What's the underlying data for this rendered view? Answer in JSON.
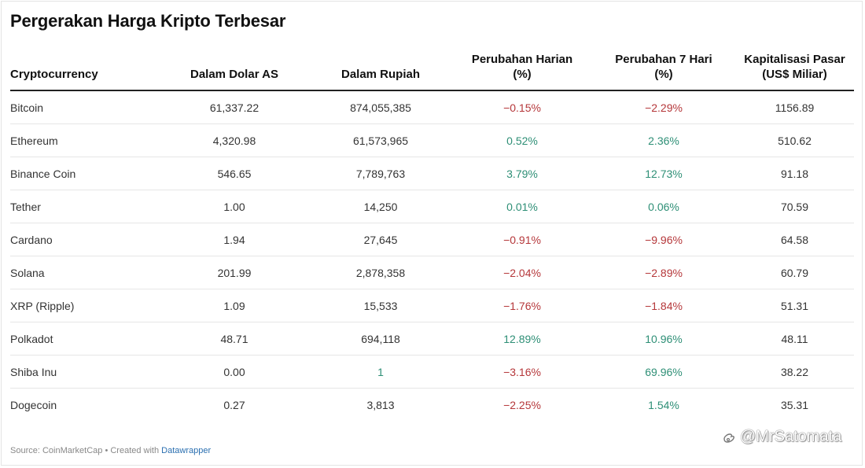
{
  "title": "Pergerakan Harga Kripto Terbesar",
  "chart_data": {
    "type": "table",
    "title": "Pergerakan Harga Kripto Terbesar",
    "columns": [
      {
        "line1": "",
        "line2": "Cryptocurrency"
      },
      {
        "line1": "",
        "line2": "Dalam Dolar AS"
      },
      {
        "line1": "",
        "line2": "Dalam Rupiah"
      },
      {
        "line1": "Perubahan Harian",
        "line2": "(%)"
      },
      {
        "line1": "Perubahan 7 Hari",
        "line2": "(%)"
      },
      {
        "line1": "Kapitalisasi Pasar",
        "line2": "(US$ Miliar)"
      }
    ],
    "rows": [
      {
        "name": "Bitcoin",
        "usd": "61,337.22",
        "idr": "874,055,385",
        "daily": "−0.15%",
        "daily_sign": "neg",
        "week": "−2.29%",
        "week_sign": "neg",
        "cap": "1156.89"
      },
      {
        "name": "Ethereum",
        "usd": "4,320.98",
        "idr": "61,573,965",
        "daily": "0.52%",
        "daily_sign": "pos",
        "week": "2.36%",
        "week_sign": "pos",
        "cap": "510.62"
      },
      {
        "name": "Binance Coin",
        "usd": "546.65",
        "idr": "7,789,763",
        "daily": "3.79%",
        "daily_sign": "pos",
        "week": "12.73%",
        "week_sign": "pos",
        "cap": "91.18"
      },
      {
        "name": "Tether",
        "usd": "1.00",
        "idr": "14,250",
        "daily": "0.01%",
        "daily_sign": "pos",
        "week": "0.06%",
        "week_sign": "pos",
        "cap": "70.59"
      },
      {
        "name": "Cardano",
        "usd": "1.94",
        "idr": "27,645",
        "daily": "−0.91%",
        "daily_sign": "neg",
        "week": "−9.96%",
        "week_sign": "neg",
        "cap": "64.58"
      },
      {
        "name": "Solana",
        "usd": "201.99",
        "idr": "2,878,358",
        "daily": "−2.04%",
        "daily_sign": "neg",
        "week": "−2.89%",
        "week_sign": "neg",
        "cap": "60.79"
      },
      {
        "name": "XRP (Ripple)",
        "usd": "1.09",
        "idr": "15,533",
        "daily": "−1.76%",
        "daily_sign": "neg",
        "week": "−1.84%",
        "week_sign": "neg",
        "cap": "51.31"
      },
      {
        "name": "Polkadot",
        "usd": "48.71",
        "idr": "694,118",
        "daily": "12.89%",
        "daily_sign": "pos",
        "week": "10.96%",
        "week_sign": "pos",
        "cap": "48.11"
      },
      {
        "name": "Shiba Inu",
        "usd": "0.00",
        "idr": "1",
        "idr_sign": "pos",
        "daily": "−3.16%",
        "daily_sign": "neg",
        "week": "69.96%",
        "week_sign": "pos",
        "cap": "38.22"
      },
      {
        "name": "Dogecoin",
        "usd": "0.27",
        "idr": "3,813",
        "daily": "−2.25%",
        "daily_sign": "neg",
        "week": "1.54%",
        "week_sign": "pos",
        "cap": "35.31"
      }
    ]
  },
  "colors": {
    "positive": "#2e8f76",
    "negative": "#b5373a"
  },
  "footer": {
    "source": "Source: CoinMarketCap • Created with ",
    "link": "Datawrapper"
  },
  "watermark": {
    "text": "@MrSatomata",
    "icon": "weibo-icon"
  }
}
